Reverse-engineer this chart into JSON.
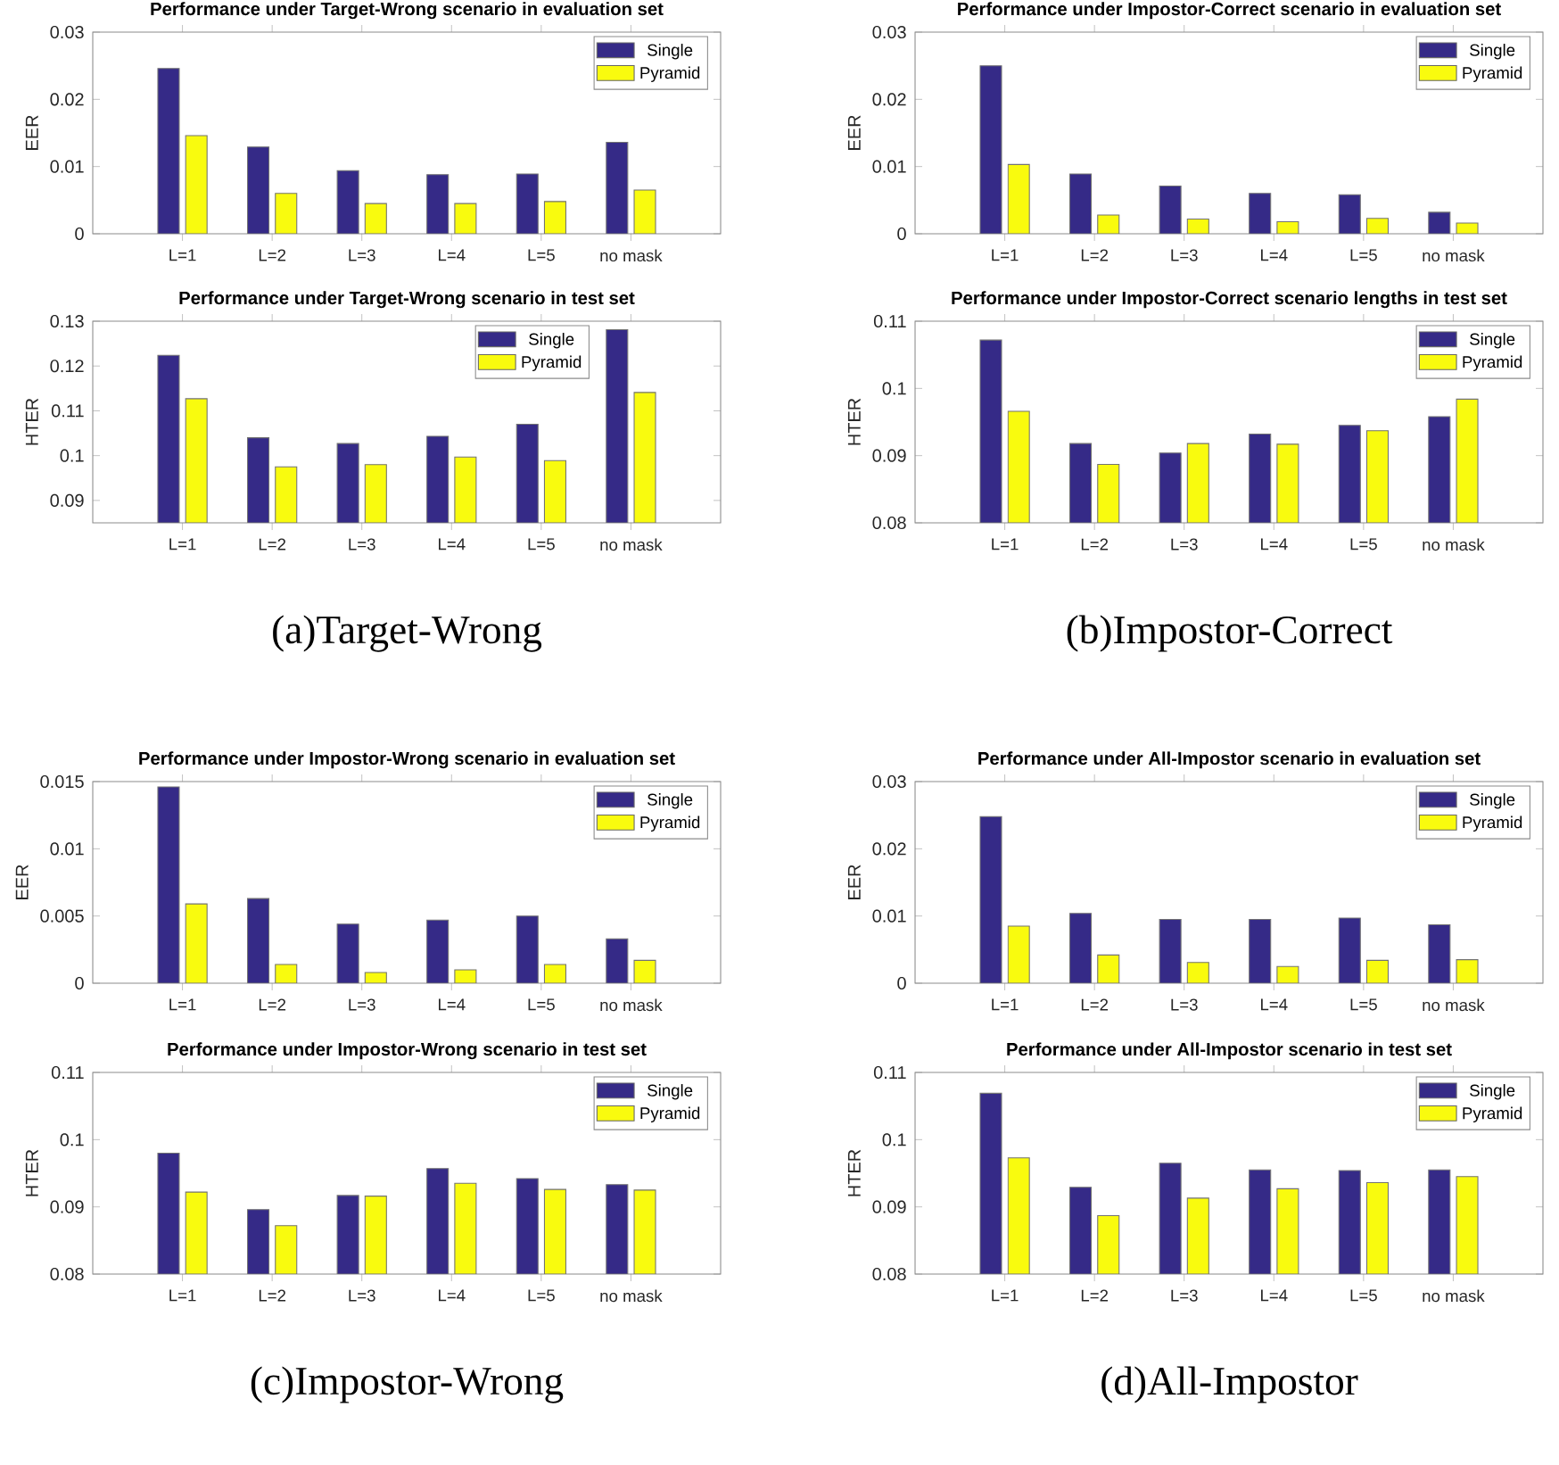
{
  "chart_data": [
    {
      "type": "bar",
      "title": "Performance under Target-Wrong scenario in evaluation set",
      "ylabel": "EER",
      "categories": [
        "L=1",
        "L=2",
        "L=3",
        "L=4",
        "L=5",
        "no mask"
      ],
      "series": [
        {
          "name": "Single",
          "color": "#352a87",
          "values": [
            0.0246,
            0.0129,
            0.0094,
            0.0088,
            0.0089,
            0.0136
          ]
        },
        {
          "name": "Pyramid",
          "color": "#f9fb0e",
          "values": [
            0.0146,
            0.006,
            0.0045,
            0.0045,
            0.0048,
            0.0065
          ]
        }
      ],
      "ylim": [
        0,
        0.03
      ],
      "yticks": [
        0,
        0.01,
        0.02,
        0.03
      ],
      "legend": "top right"
    },
    {
      "type": "bar",
      "title": "Performance under Target-Wrong scenario in test set",
      "ylabel": "HTER",
      "categories": [
        "L=1",
        "L=2",
        "L=3",
        "L=4",
        "L=5",
        "no mask"
      ],
      "series": [
        {
          "name": "Single",
          "color": "#352a87",
          "values": [
            0.1224,
            0.104,
            0.1027,
            0.1043,
            0.107,
            0.1281
          ]
        },
        {
          "name": "Pyramid",
          "color": "#f9fb0e",
          "values": [
            0.1127,
            0.0975,
            0.098,
            0.0997,
            0.0989,
            0.1141
          ]
        }
      ],
      "ylim": [
        0.085,
        0.13
      ],
      "yticks": [
        0.09,
        0.1,
        0.11,
        0.12,
        0.13
      ],
      "legend": "top",
      "annotations": [
        "(a)Target-Wrong"
      ]
    },
    {
      "type": "bar",
      "title": "Performance under Impostor-Correct scenario in evaluation set",
      "ylabel": "EER",
      "categories": [
        "L=1",
        "L=2",
        "L=3",
        "L=4",
        "L=5",
        "no mask"
      ],
      "series": [
        {
          "name": "Single",
          "color": "#352a87",
          "values": [
            0.025,
            0.0089,
            0.0071,
            0.006,
            0.0058,
            0.0032
          ]
        },
        {
          "name": "Pyramid",
          "color": "#f9fb0e",
          "values": [
            0.0103,
            0.0028,
            0.0022,
            0.0018,
            0.0023,
            0.0016
          ]
        }
      ],
      "ylim": [
        0,
        0.03
      ],
      "yticks": [
        0,
        0.01,
        0.02,
        0.03
      ],
      "legend": "top right"
    },
    {
      "type": "bar",
      "title": "Performance under Impostor-Correct scenario lengths in test set",
      "ylabel": "HTER",
      "categories": [
        "L=1",
        "L=2",
        "L=3",
        "L=4",
        "L=5",
        "no mask"
      ],
      "series": [
        {
          "name": "Single",
          "color": "#352a87",
          "values": [
            0.1072,
            0.0918,
            0.0904,
            0.0932,
            0.0945,
            0.0958
          ]
        },
        {
          "name": "Pyramid",
          "color": "#f9fb0e",
          "values": [
            0.0966,
            0.0887,
            0.0918,
            0.0917,
            0.0937,
            0.0984
          ]
        }
      ],
      "ylim": [
        0.08,
        0.11
      ],
      "yticks": [
        0.08,
        0.09,
        0.1,
        0.11
      ],
      "legend": "top right",
      "annotations": [
        "(b)Impostor-Correct"
      ]
    },
    {
      "type": "bar",
      "title": "Performance under Impostor-Wrong scenario in evaluation set",
      "ylabel": "EER",
      "categories": [
        "L=1",
        "L=2",
        "L=3",
        "L=4",
        "L=5",
        "no mask"
      ],
      "series": [
        {
          "name": "Single",
          "color": "#352a87",
          "values": [
            0.0146,
            0.0063,
            0.0044,
            0.0047,
            0.005,
            0.0033
          ]
        },
        {
          "name": "Pyramid",
          "color": "#f9fb0e",
          "values": [
            0.0059,
            0.0014,
            0.0008,
            0.001,
            0.0014,
            0.0017
          ]
        }
      ],
      "ylim": [
        0,
        0.015
      ],
      "yticks": [
        0,
        0.005,
        0.01,
        0.015
      ],
      "legend": "top right"
    },
    {
      "type": "bar",
      "title": "Performance under Impostor-Wrong scenario in test set",
      "ylabel": "HTER",
      "categories": [
        "L=1",
        "L=2",
        "L=3",
        "L=4",
        "L=5",
        "no mask"
      ],
      "series": [
        {
          "name": "Single",
          "color": "#352a87",
          "values": [
            0.098,
            0.0896,
            0.0917,
            0.0957,
            0.0942,
            0.0933
          ]
        },
        {
          "name": "Pyramid",
          "color": "#f9fb0e",
          "values": [
            0.0922,
            0.0872,
            0.0916,
            0.0935,
            0.0926,
            0.0925
          ]
        }
      ],
      "ylim": [
        0.08,
        0.11
      ],
      "yticks": [
        0.08,
        0.09,
        0.1,
        0.11
      ],
      "legend": "top right",
      "annotations": [
        "(c)Impostor-Wrong"
      ]
    },
    {
      "type": "bar",
      "title": "Performance under All-Impostor scenario in evaluation set",
      "ylabel": "EER",
      "categories": [
        "L=1",
        "L=2",
        "L=3",
        "L=4",
        "L=5",
        "no mask"
      ],
      "series": [
        {
          "name": "Single",
          "color": "#352a87",
          "values": [
            0.0248,
            0.0104,
            0.0095,
            0.0095,
            0.0097,
            0.0087
          ]
        },
        {
          "name": "Pyramid",
          "color": "#f9fb0e",
          "values": [
            0.0085,
            0.0042,
            0.0031,
            0.0025,
            0.0034,
            0.0035
          ]
        }
      ],
      "ylim": [
        0,
        0.03
      ],
      "yticks": [
        0,
        0.01,
        0.02,
        0.03
      ],
      "legend": "top right"
    },
    {
      "type": "bar",
      "title": "Performance under All-Impostor scenario in test set",
      "ylabel": "HTER",
      "categories": [
        "L=1",
        "L=2",
        "L=3",
        "L=4",
        "L=5",
        "no mask"
      ],
      "series": [
        {
          "name": "Single",
          "color": "#352a87",
          "values": [
            0.1069,
            0.0929,
            0.0965,
            0.0955,
            0.0954,
            0.0955
          ]
        },
        {
          "name": "Pyramid",
          "color": "#f9fb0e",
          "values": [
            0.0973,
            0.0887,
            0.0913,
            0.0927,
            0.0936,
            0.0945
          ]
        }
      ],
      "ylim": [
        0.08,
        0.11
      ],
      "yticks": [
        0.08,
        0.09,
        0.1,
        0.11
      ],
      "legend": "top right",
      "annotations": [
        "(d)All-Impostor"
      ]
    }
  ]
}
